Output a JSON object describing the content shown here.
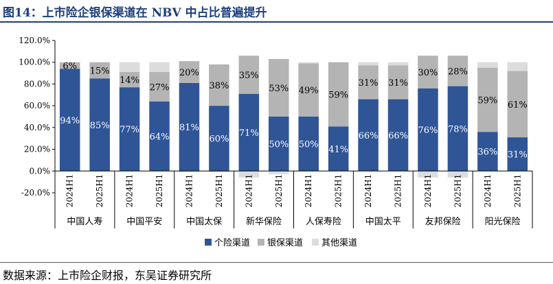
{
  "header": {
    "title": "图14：上市险企银保渠道在 NBV 中占比普遍提升"
  },
  "footer": {
    "source": "数据来源：上市险企财报，东吴证券研究所"
  },
  "colors": {
    "personal": "#2f5597",
    "bank": "#b4b4b4",
    "other": "#dcdcdc",
    "title": "#1f3f7a"
  },
  "chart_data": {
    "type": "bar",
    "stacked": true,
    "title": "",
    "xlabel": "",
    "ylabel": "",
    "ylim": [
      -20,
      120
    ],
    "yticks": [
      "-20.0%",
      "0.0%",
      "20.0%",
      "40.0%",
      "60.0%",
      "80.0%",
      "100.0%",
      "120.0%"
    ],
    "grid": false,
    "legend_position": "bottom",
    "groups": [
      {
        "name": "中国人寿",
        "periods": [
          "2024H1",
          "2025H1"
        ]
      },
      {
        "name": "中国平安",
        "periods": [
          "2024H1",
          "2025H1"
        ]
      },
      {
        "name": "中国太保",
        "periods": [
          "2024H1",
          "2025H1"
        ]
      },
      {
        "name": "新华保险",
        "periods": [
          "2024H1",
          "2025H1"
        ]
      },
      {
        "name": "人保寿险",
        "periods": [
          "2024H1",
          "2025H1"
        ]
      },
      {
        "name": "中国太平",
        "periods": [
          "2024H1",
          "2025H1"
        ]
      },
      {
        "name": "友邦保险",
        "periods": [
          "2024H1",
          "2025H1"
        ]
      },
      {
        "name": "阳光保险",
        "periods": [
          "2024H1",
          "2025H1"
        ]
      }
    ],
    "series": [
      {
        "name": "个险渠道",
        "color": "#2f5597",
        "values": [
          94,
          85,
          77,
          64,
          81,
          60,
          71,
          50,
          50,
          41,
          66,
          66,
          76,
          78,
          36,
          31
        ],
        "labels": [
          "94%",
          "85%",
          "77%",
          "64%",
          "81%",
          "60%",
          "71%",
          "50%",
          "50%",
          "41%",
          "66%",
          "66%",
          "76%",
          "78%",
          "36%",
          "31%"
        ]
      },
      {
        "name": "银保渠道",
        "color": "#b4b4b4",
        "values": [
          6,
          15,
          14,
          27,
          20,
          38,
          35,
          53,
          49,
          59,
          31,
          31,
          30,
          28,
          59,
          61
        ],
        "labels": [
          "6%",
          "15%",
          "14%",
          "27%",
          "20%",
          "38%",
          "35%",
          "53%",
          "49%",
          "59%",
          "31%",
          "31%",
          "30%",
          "28%",
          "59%",
          "61%"
        ]
      },
      {
        "name": "其他渠道",
        "color": "#dcdcdc",
        "values": [
          0,
          0,
          9,
          9,
          -1,
          -1,
          -6,
          -3,
          1,
          0,
          3,
          3,
          -6,
          -6,
          5,
          8
        ],
        "labels": []
      }
    ]
  }
}
